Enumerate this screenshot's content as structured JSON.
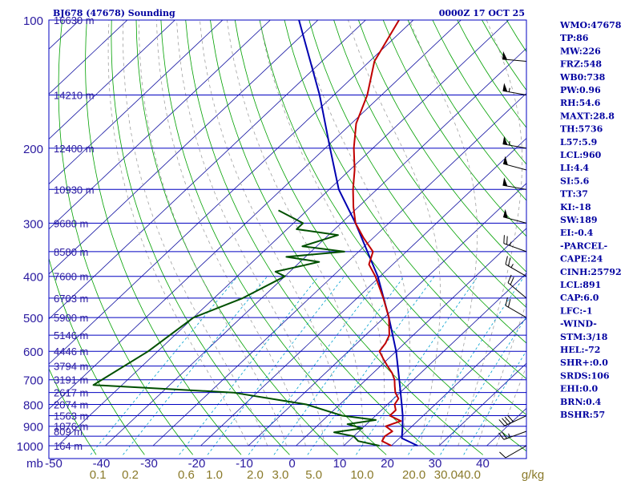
{
  "title": {
    "left": "BJ678 (47678) Sounding",
    "right": "0000Z 17 OCT 25"
  },
  "indices": [
    "WMO:47678",
    "TP:86",
    "MW:226",
    "FRZ:548",
    "WB0:738",
    "PW:0.96",
    "RH:54.6",
    "MAXT:28.8",
    "TH:5736",
    "L57:5.9",
    "LCL:960",
    "LI:4.4",
    "SI:5.6",
    "TT:37",
    "KI:-18",
    "SW:189",
    "EI:-0.4",
    "-PARCEL-",
    "CAPE:24",
    "CINH:25792",
    "LCL:891",
    "CAP:6.0",
    "LFC:-1",
    "-WIND-",
    "STM:3/18",
    "HEL:-72",
    "SHR+:0.0",
    "SRDS:106",
    "EHI:0.0",
    "BRN:0.4",
    "BSHR:57"
  ],
  "colors": {
    "isobar": "#0000c0",
    "isotherm": "#1010a0",
    "dry_adiabat": "#00a000",
    "moist_adiabat": "#a0a0a0",
    "mixing_ratio": "#00a0d0",
    "temperature": "#c00000",
    "dewpoint": "#005000",
    "parcel": "#0000b0",
    "wind": "#000000"
  },
  "chart_data": {
    "type": "skew-t",
    "title": "BJ678 (47678) Sounding 0000Z 17 OCT 25",
    "pressure_unit": "mb",
    "pressure_range": [
      1000,
      100
    ],
    "temperature_range": [
      -50,
      40
    ],
    "pressure_labels": [
      1000,
      900,
      800,
      700,
      600,
      500,
      400,
      300,
      200,
      100
    ],
    "pressure_label_text": [
      "1000",
      "900",
      "800",
      "700",
      "600",
      "500",
      "400",
      "300",
      "200",
      "100"
    ],
    "temperature_ticks": [
      -50,
      -40,
      -30,
      -20,
      -10,
      0,
      10,
      20,
      30,
      40
    ],
    "temperature_tick_text": [
      "-50",
      "-40",
      "-30",
      "-20",
      "-10",
      "0",
      "10",
      "20",
      "30",
      "40"
    ],
    "height_labels": [
      {
        "p": 1000,
        "text": "164 m"
      },
      {
        "p": 925,
        "text": "809 m"
      },
      {
        "p": 900,
        "text": "1076 m"
      },
      {
        "p": 850,
        "text": "1563 m"
      },
      {
        "p": 800,
        "text": "2074 m"
      },
      {
        "p": 750,
        "text": "2617 m"
      },
      {
        "p": 700,
        "text": "3191 m"
      },
      {
        "p": 650,
        "text": "3794 m"
      },
      {
        "p": 600,
        "text": "4446 m"
      },
      {
        "p": 550,
        "text": "5146 m"
      },
      {
        "p": 500,
        "text": "5900 m"
      },
      {
        "p": 450,
        "text": "6703 m"
      },
      {
        "p": 400,
        "text": "7600 m"
      },
      {
        "p": 350,
        "text": "8580 m"
      },
      {
        "p": 300,
        "text": "9680 m"
      },
      {
        "p": 250,
        "text": "10930 m"
      },
      {
        "p": 200,
        "text": "12400 m"
      },
      {
        "p": 150,
        "text": "14210 m"
      },
      {
        "p": 100,
        "text": "16630 m"
      }
    ],
    "mixing_ratio_labels": [
      "0.1",
      "0.2",
      "0.6",
      "1.0",
      "2.0",
      "3.0",
      "5.0",
      "10.0",
      "20.0",
      "30.0",
      "40.0"
    ],
    "mixing_ratio_unit": "g/kg",
    "mb_label": "mb",
    "temperature_profile": [
      {
        "p": 1000,
        "t": 20
      },
      {
        "p": 975,
        "t": 17
      },
      {
        "p": 950,
        "t": 16.5
      },
      {
        "p": 925,
        "t": 17
      },
      {
        "p": 900,
        "t": 14.5
      },
      {
        "p": 875,
        "t": 16.5
      },
      {
        "p": 850,
        "t": 13
      },
      {
        "p": 825,
        "t": 13
      },
      {
        "p": 800,
        "t": 11.5
      },
      {
        "p": 775,
        "t": 11
      },
      {
        "p": 750,
        "t": 9
      },
      {
        "p": 725,
        "t": 7.5
      },
      {
        "p": 700,
        "t": 6
      },
      {
        "p": 675,
        "t": 4
      },
      {
        "p": 650,
        "t": 1.5
      },
      {
        "p": 625,
        "t": -1
      },
      {
        "p": 600,
        "t": -3.5
      },
      {
        "p": 575,
        "t": -4
      },
      {
        "p": 550,
        "t": -5
      },
      {
        "p": 500,
        "t": -9
      },
      {
        "p": 450,
        "t": -14.5
      },
      {
        "p": 400,
        "t": -21
      },
      {
        "p": 375,
        "t": -25
      },
      {
        "p": 350,
        "t": -27
      },
      {
        "p": 325,
        "t": -32
      },
      {
        "p": 300,
        "t": -37
      },
      {
        "p": 275,
        "t": -41
      },
      {
        "p": 250,
        "t": -45
      },
      {
        "p": 225,
        "t": -49
      },
      {
        "p": 200,
        "t": -54
      },
      {
        "p": 175,
        "t": -59
      },
      {
        "p": 150,
        "t": -63
      },
      {
        "p": 125,
        "t": -69
      },
      {
        "p": 100,
        "t": -73
      }
    ],
    "dewpoint_profile": [
      {
        "p": 1000,
        "t": 17.5
      },
      {
        "p": 975,
        "t": 12
      },
      {
        "p": 950,
        "t": 10
      },
      {
        "p": 930,
        "t": 5
      },
      {
        "p": 910,
        "t": 10
      },
      {
        "p": 890,
        "t": 6
      },
      {
        "p": 870,
        "t": 11
      },
      {
        "p": 850,
        "t": 3
      },
      {
        "p": 800,
        "t": -7
      },
      {
        "p": 750,
        "t": -25
      },
      {
        "p": 720,
        "t": -56
      },
      {
        "p": 600,
        "t": -52
      },
      {
        "p": 500,
        "t": -50
      },
      {
        "p": 450,
        "t": -44
      },
      {
        "p": 400,
        "t": -40
      },
      {
        "p": 390,
        "t": -43
      },
      {
        "p": 370,
        "t": -36
      },
      {
        "p": 360,
        "t": -44
      },
      {
        "p": 350,
        "t": -33
      },
      {
        "p": 340,
        "t": -43
      },
      {
        "p": 320,
        "t": -38
      },
      {
        "p": 310,
        "t": -48
      },
      {
        "p": 300,
        "t": -48
      },
      {
        "p": 280,
        "t": -56
      }
    ],
    "parcel_profile": [
      {
        "p": 1000,
        "t": 25.5
      },
      {
        "p": 960,
        "t": 20.5
      },
      {
        "p": 900,
        "t": 18
      },
      {
        "p": 850,
        "t": 15.7
      },
      {
        "p": 800,
        "t": 13
      },
      {
        "p": 700,
        "t": 7
      },
      {
        "p": 600,
        "t": 0
      },
      {
        "p": 500,
        "t": -9
      },
      {
        "p": 400,
        "t": -20.5
      },
      {
        "p": 300,
        "t": -37
      },
      {
        "p": 250,
        "t": -48
      },
      {
        "p": 200,
        "t": -59
      },
      {
        "p": 150,
        "t": -73
      },
      {
        "p": 100,
        "t": -94
      }
    ],
    "wind_profile": [
      {
        "p": 1000,
        "dir": 240,
        "spd": 10
      },
      {
        "p": 925,
        "dir": 250,
        "spd": 25
      },
      {
        "p": 850,
        "dir": 245,
        "spd": 40
      },
      {
        "p": 500,
        "dir": 300,
        "spd": 20
      },
      {
        "p": 450,
        "dir": 310,
        "spd": 20
      },
      {
        "p": 400,
        "dir": 300,
        "spd": 25
      },
      {
        "p": 350,
        "dir": 290,
        "spd": 25
      },
      {
        "p": 300,
        "dir": 285,
        "spd": 50
      },
      {
        "p": 250,
        "dir": 280,
        "spd": 50
      },
      {
        "p": 225,
        "dir": 285,
        "spd": 50
      },
      {
        "p": 200,
        "dir": 280,
        "spd": 55
      },
      {
        "p": 150,
        "dir": 280,
        "spd": 55
      },
      {
        "p": 125,
        "dir": 275,
        "spd": 50
      }
    ],
    "grid": true
  }
}
